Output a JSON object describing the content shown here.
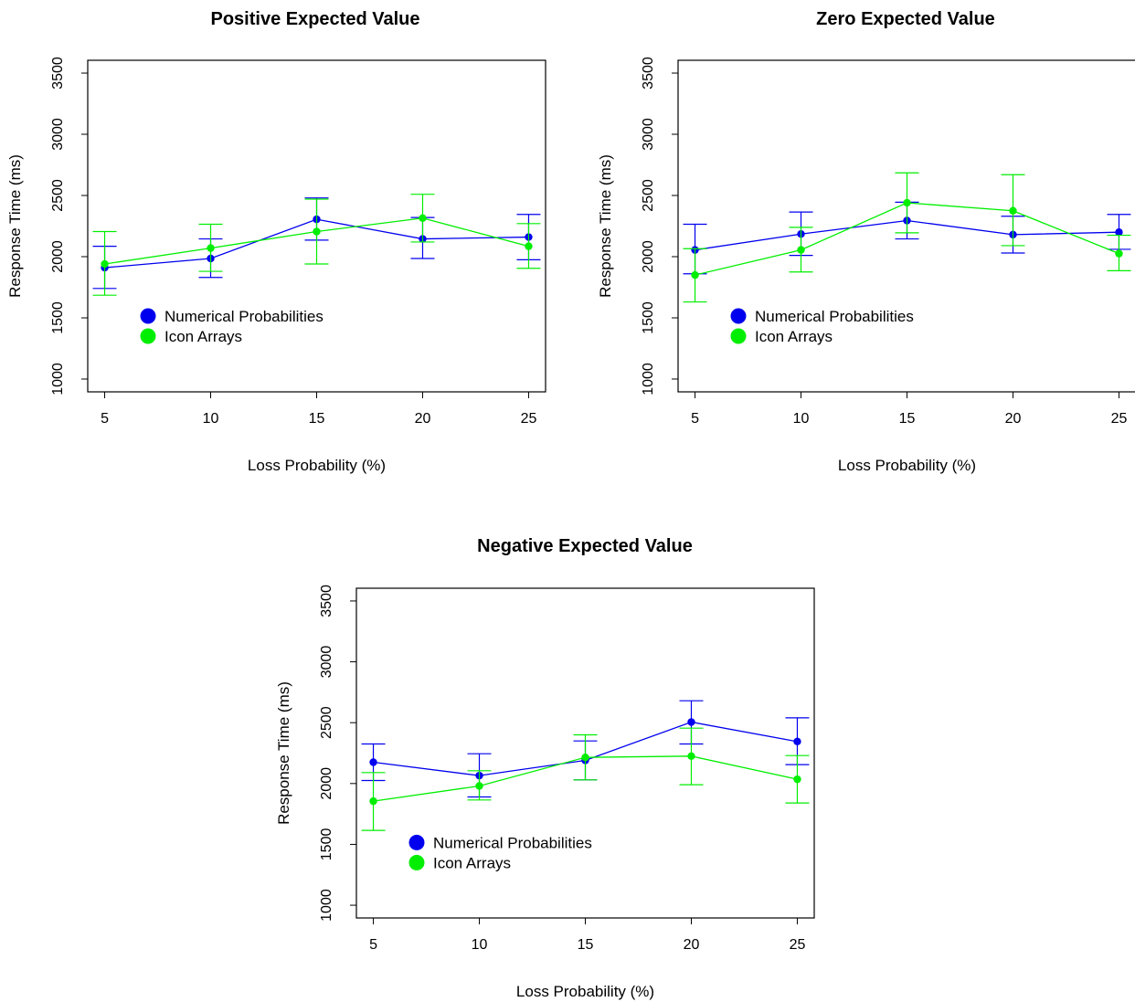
{
  "chart_data": [
    {
      "type": "line",
      "title": "Positive Expected Value",
      "xlabel": "Loss Probability (%)",
      "ylabel": "Response Time (ms)",
      "x": [
        5,
        10,
        15,
        20,
        25
      ],
      "x_ticks": [
        "5",
        "10",
        "15",
        "20",
        "25"
      ],
      "y_ticks": [
        "1000",
        "1500",
        "2000",
        "2500",
        "3000",
        "3500"
      ],
      "ylim": [
        1000,
        3500
      ],
      "legend_position": "bottom-left",
      "series": [
        {
          "name": "Numerical Probabilities",
          "color": "#0000ee",
          "values": [
            1910,
            1985,
            2305,
            2145,
            2160
          ],
          "lower": [
            1740,
            1830,
            2135,
            1985,
            1975
          ],
          "upper": [
            2085,
            2145,
            2480,
            2320,
            2345
          ]
        },
        {
          "name": "Icon Arrays",
          "color": "#00ee00",
          "values": [
            1940,
            2070,
            2205,
            2315,
            2085
          ],
          "lower": [
            1685,
            1880,
            1940,
            2120,
            1905
          ],
          "upper": [
            2205,
            2265,
            2470,
            2510,
            2270
          ]
        }
      ]
    },
    {
      "type": "line",
      "title": "Zero Expected Value",
      "xlabel": "Loss Probability (%)",
      "ylabel": "Response Time (ms)",
      "x": [
        5,
        10,
        15,
        20,
        25
      ],
      "x_ticks": [
        "5",
        "10",
        "15",
        "20",
        "25"
      ],
      "y_ticks": [
        "1000",
        "1500",
        "2000",
        "2500",
        "3000",
        "3500"
      ],
      "ylim": [
        1000,
        3500
      ],
      "legend_position": "bottom-left",
      "series": [
        {
          "name": "Numerical Probabilities",
          "color": "#0000ee",
          "values": [
            2055,
            2185,
            2295,
            2180,
            2200
          ],
          "lower": [
            1860,
            2010,
            2145,
            2030,
            2060
          ],
          "upper": [
            2265,
            2365,
            2445,
            2330,
            2345
          ]
        },
        {
          "name": "Icon Arrays",
          "color": "#00ee00",
          "values": [
            1850,
            2055,
            2440,
            2375,
            2025
          ],
          "lower": [
            1630,
            1875,
            2195,
            2090,
            1885
          ],
          "upper": [
            2065,
            2240,
            2685,
            2670,
            2175
          ]
        }
      ]
    },
    {
      "type": "line",
      "title": "Negative Expected Value",
      "xlabel": "Loss Probability (%)",
      "ylabel": "Response Time (ms)",
      "x": [
        5,
        10,
        15,
        20,
        25
      ],
      "x_ticks": [
        "5",
        "10",
        "15",
        "20",
        "25"
      ],
      "y_ticks": [
        "1000",
        "1500",
        "2000",
        "2500",
        "3000",
        "3500"
      ],
      "ylim": [
        1000,
        3500
      ],
      "legend_position": "bottom-left",
      "series": [
        {
          "name": "Numerical Probabilities",
          "color": "#0000ee",
          "values": [
            2175,
            2065,
            2190,
            2505,
            2345
          ],
          "lower": [
            2025,
            1890,
            2030,
            2325,
            2155
          ],
          "upper": [
            2325,
            2245,
            2350,
            2680,
            2540
          ]
        },
        {
          "name": "Icon Arrays",
          "color": "#00ee00",
          "values": [
            1855,
            1980,
            2215,
            2225,
            2035
          ],
          "lower": [
            1615,
            1865,
            2030,
            1990,
            1840
          ],
          "upper": [
            2090,
            2105,
            2400,
            2455,
            2230
          ]
        }
      ]
    }
  ]
}
